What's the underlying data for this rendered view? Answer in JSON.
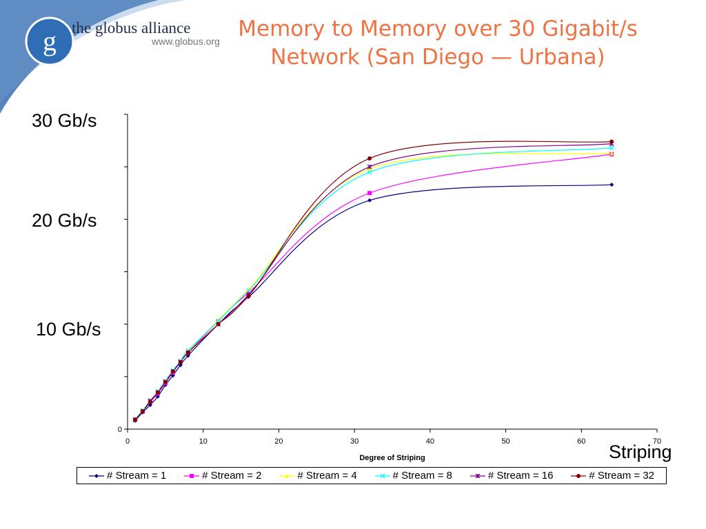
{
  "logo": {
    "letter": "g",
    "name": "the globus alliance",
    "url": "www.globus.org"
  },
  "slide": {
    "title_line1": "Memory to Memory over 30 Gigabit/s",
    "title_line2": "Network (San Diego — Urbana)",
    "label_30": "30 Gb/s",
    "label_20": "20 Gb/s",
    "label_10": "10 Gb/s",
    "label_striping": "Striping"
  },
  "colors": {
    "title": "#ef7242",
    "corner_blue": "#3a6fb0",
    "logo_blue": "#2f6db5"
  },
  "chart_data": {
    "type": "line",
    "xlabel": "Degree of Striping",
    "ylabel": "",
    "xlim": [
      0,
      70
    ],
    "ylim": [
      0,
      30
    ],
    "x_ticks": [
      0,
      10,
      20,
      30,
      40,
      50,
      60,
      70
    ],
    "y_tick_labels": [
      "0"
    ],
    "grid": false,
    "legend_position": "bottom",
    "x": [
      1,
      2,
      3,
      4,
      5,
      6,
      7,
      8,
      12,
      16,
      32,
      64
    ],
    "series": [
      {
        "name": "# Stream = 1",
        "color": "#000080",
        "marker": "diamond",
        "values": [
          0.8,
          1.6,
          2.3,
          3.1,
          4.2,
          5.1,
          6.1,
          7.0,
          10.0,
          12.6,
          21.8,
          23.3
        ]
      },
      {
        "name": "# Stream = 2",
        "color": "#ff00ff",
        "marker": "square",
        "values": [
          0.9,
          1.7,
          2.6,
          3.4,
          4.4,
          5.4,
          6.4,
          7.3,
          10.3,
          13.0,
          22.5,
          26.2
        ]
      },
      {
        "name": "# Stream = 4",
        "color": "#ffff00",
        "marker": "triangle",
        "values": [
          0.9,
          1.8,
          2.7,
          3.6,
          4.6,
          5.5,
          6.5,
          7.4,
          10.4,
          13.3,
          24.8,
          26.3
        ]
      },
      {
        "name": "# Stream = 8",
        "color": "#00ffff",
        "marker": "x",
        "values": [
          0.9,
          1.8,
          2.7,
          3.6,
          4.6,
          5.6,
          6.5,
          7.5,
          10.3,
          13.2,
          24.5,
          26.8
        ]
      },
      {
        "name": "# Stream = 16",
        "color": "#800080",
        "marker": "star",
        "values": [
          0.9,
          1.7,
          2.7,
          3.5,
          4.5,
          5.5,
          6.4,
          7.3,
          10.0,
          12.8,
          25.0,
          27.2
        ]
      },
      {
        "name": "# Stream = 32",
        "color": "#800000",
        "marker": "circle",
        "values": [
          0.9,
          1.7,
          2.6,
          3.5,
          4.5,
          5.5,
          6.4,
          7.3,
          10.0,
          12.7,
          25.8,
          27.4
        ]
      }
    ]
  }
}
